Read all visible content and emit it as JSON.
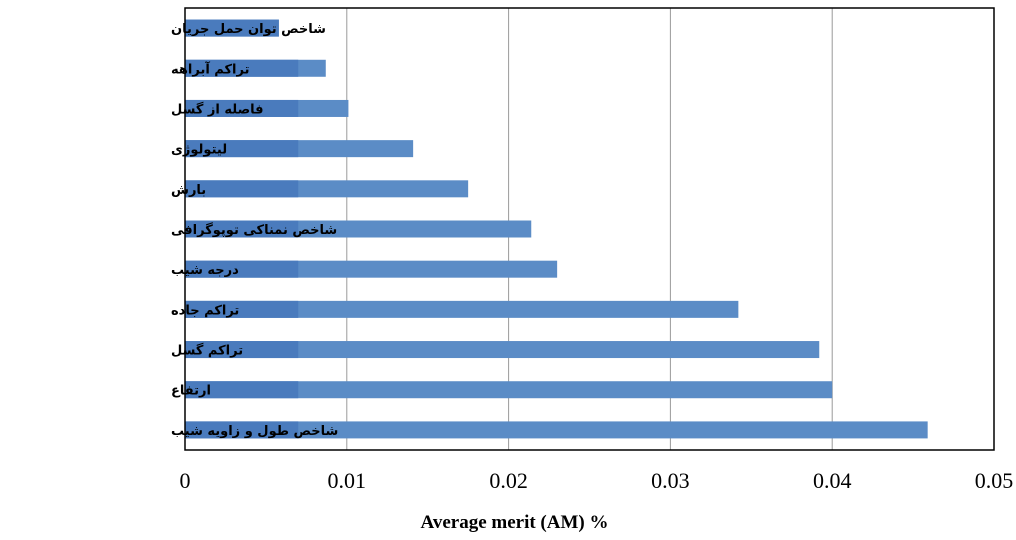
{
  "chart_data": {
    "type": "bar",
    "orientation": "horizontal",
    "categories": [
      "شاخص توان حمل جریان",
      "تراکم آبراهه",
      "فاصله از گسل",
      "لیتولوژی",
      "بارش",
      "شاخص نمناکی توپوگرافی",
      "درجه شیب",
      "تراکم جاده",
      "تراکم گسل",
      "ارتفاع",
      "شاخص طول و زاویه شیب"
    ],
    "values": [
      0.0058,
      0.0087,
      0.0101,
      0.0141,
      0.0175,
      0.0214,
      0.023,
      0.0342,
      0.0392,
      0.04,
      0.0459
    ],
    "xlim": [
      0,
      0.05
    ],
    "xticks": [
      "0",
      "0.01",
      "0.02",
      "0.03",
      "0.04",
      "0.05"
    ],
    "xlabel": "Average merit (AM) %",
    "grid": "vertical",
    "colors": {
      "bar": "#5b8cc6",
      "bar_shade": "#4a7bbd",
      "grid": "#9a9a9a",
      "frame": "#000000"
    }
  }
}
